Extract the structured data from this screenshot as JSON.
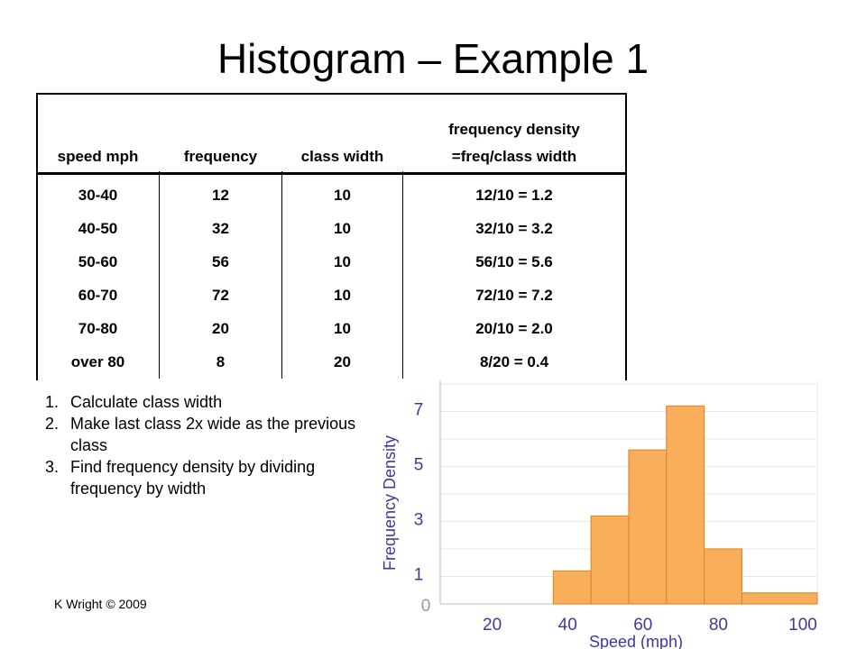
{
  "title": "Histogram – Example 1",
  "table": {
    "headers": [
      "speed mph",
      "frequency",
      "class width",
      "frequency density",
      "=freq/class width"
    ],
    "rows": [
      [
        "30-40",
        "12",
        "10",
        "12/10 = 1.2"
      ],
      [
        "40-50",
        "32",
        "10",
        "32/10 = 3.2"
      ],
      [
        "50-60",
        "56",
        "10",
        "56/10 = 5.6"
      ],
      [
        "60-70",
        "72",
        "10",
        "72/10 = 7.2"
      ],
      [
        "70-80",
        "20",
        "10",
        "20/10 = 2.0"
      ],
      [
        "over 80",
        "8",
        "20",
        "8/20 = 0.4"
      ]
    ]
  },
  "steps": [
    {
      "num": "1.",
      "text": "Calculate class width"
    },
    {
      "num": "2.",
      "text": "Make last class 2x wide as the previous class"
    },
    {
      "num": "3.",
      "text": "Find frequency density by dividing frequency by width"
    }
  ],
  "credit": "K Wright © 2009",
  "colors": {
    "bar_fill": "#f9ae5b",
    "bar_stroke": "#e08a2c",
    "axis_text": "#3a3aa0"
  },
  "chart_data": {
    "type": "bar",
    "xlabel": "Speed (mph)",
    "ylabel": "Frequency Density",
    "xlim": [
      0,
      100
    ],
    "ylim": [
      0,
      8
    ],
    "x_ticks": [
      "20",
      "40",
      "60",
      "80",
      "100"
    ],
    "y_ticks": [
      "1",
      "3",
      "5",
      "7"
    ],
    "origin_label": "0",
    "bins": [
      {
        "start": 30,
        "end": 40,
        "value": 1.2
      },
      {
        "start": 40,
        "end": 50,
        "value": 3.2
      },
      {
        "start": 50,
        "end": 60,
        "value": 5.6
      },
      {
        "start": 60,
        "end": 70,
        "value": 7.2
      },
      {
        "start": 70,
        "end": 80,
        "value": 2.0
      },
      {
        "start": 80,
        "end": 100,
        "value": 0.4
      }
    ]
  }
}
